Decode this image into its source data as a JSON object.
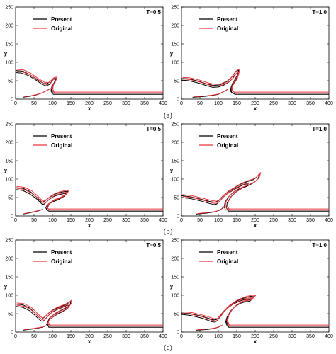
{
  "figure": {
    "captions": [
      "(a)",
      "(b)",
      "(c)"
    ]
  },
  "colors": {
    "present": "#000000",
    "original": "#e8343a"
  },
  "chart_data": [
    {
      "type": "line",
      "panel": "a-left",
      "time_label": "T=0.5",
      "xlabel": "x",
      "ylabel": "y",
      "xlim": [
        0,
        400
      ],
      "ylim": [
        0,
        250
      ],
      "xticks": [
        0,
        50,
        100,
        150,
        200,
        250,
        300,
        350,
        400
      ],
      "yticks": [
        0,
        50,
        100,
        150,
        200,
        250
      ],
      "legend": "top-left",
      "series": [
        {
          "name": "Present",
          "variant": "a05"
        },
        {
          "name": "Original",
          "variant": "a05"
        }
      ]
    },
    {
      "type": "line",
      "panel": "a-right",
      "time_label": "T=1.0",
      "xlabel": "x",
      "ylabel": "y",
      "xlim": [
        0,
        400
      ],
      "ylim": [
        0,
        250
      ],
      "xticks": [
        0,
        50,
        100,
        150,
        200,
        250,
        300,
        350,
        400
      ],
      "yticks": [
        0,
        50,
        100,
        150,
        200,
        250
      ],
      "legend": "top-left",
      "series": [
        {
          "name": "Present",
          "variant": "a10"
        },
        {
          "name": "Original",
          "variant": "a10"
        }
      ]
    },
    {
      "type": "line",
      "panel": "b-left",
      "time_label": "T=0.5",
      "xlabel": "x",
      "ylabel": "y",
      "xlim": [
        0,
        400
      ],
      "ylim": [
        0,
        250
      ],
      "xticks": [
        0,
        50,
        100,
        150,
        200,
        250,
        300,
        350,
        400
      ],
      "yticks": [
        0,
        50,
        100,
        150,
        200,
        250
      ],
      "legend": "top-left",
      "series": [
        {
          "name": "Present",
          "variant": "b05"
        },
        {
          "name": "Original",
          "variant": "b05"
        }
      ]
    },
    {
      "type": "line",
      "panel": "b-right",
      "time_label": "T=1.0",
      "xlabel": "x",
      "ylabel": "y",
      "xlim": [
        0,
        400
      ],
      "ylim": [
        0,
        250
      ],
      "xticks": [
        0,
        50,
        100,
        150,
        200,
        250,
        300,
        350,
        400
      ],
      "yticks": [
        0,
        50,
        100,
        150,
        200,
        250
      ],
      "legend": "top-left",
      "series": [
        {
          "name": "Present",
          "variant": "b10"
        },
        {
          "name": "Original",
          "variant": "b10"
        }
      ]
    },
    {
      "type": "line",
      "panel": "c-left",
      "time_label": "T=0.5",
      "xlabel": "x",
      "ylabel": "y",
      "xlim": [
        0,
        400
      ],
      "ylim": [
        0,
        250
      ],
      "xticks": [
        0,
        50,
        100,
        150,
        200,
        250,
        300,
        350,
        400
      ],
      "yticks": [
        0,
        50,
        100,
        150,
        200,
        250
      ],
      "legend": "top-left",
      "series": [
        {
          "name": "Present",
          "variant": "c05"
        },
        {
          "name": "Original",
          "variant": "c05"
        }
      ]
    },
    {
      "type": "line",
      "panel": "c-right",
      "time_label": "T=1.0",
      "xlabel": "x",
      "ylabel": "y",
      "xlim": [
        0,
        400
      ],
      "ylim": [
        0,
        250
      ],
      "xticks": [
        0,
        50,
        100,
        150,
        200,
        250,
        300,
        350,
        400
      ],
      "yticks": [
        0,
        50,
        100,
        150,
        200,
        250
      ],
      "legend": "top-left",
      "series": [
        {
          "name": "Present",
          "variant": "c10"
        },
        {
          "name": "Original",
          "variant": "c10"
        }
      ]
    }
  ]
}
